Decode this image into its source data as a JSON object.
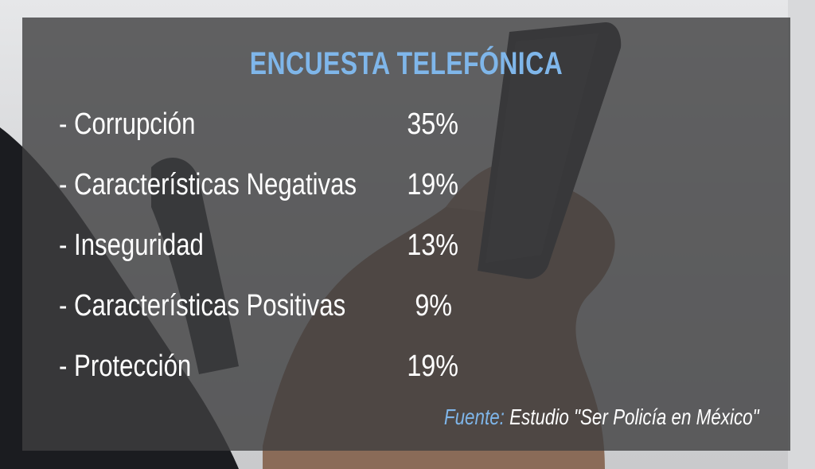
{
  "title": "ENCUESTA TELEFÓNICA",
  "items": [
    {
      "label": "- Corrupción",
      "value": "35%"
    },
    {
      "label": "- Características Negativas",
      "value": "19%"
    },
    {
      "label": "- Inseguridad",
      "value": "13%"
    },
    {
      "label": "- Características Positivas",
      "value": "9%"
    },
    {
      "label": "- Protección",
      "value": "19%"
    }
  ],
  "source": {
    "label": "Fuente:",
    "text": "Estudio \"Ser Policía en México\""
  },
  "colors": {
    "accent": "#7fb6ea",
    "text": "#ffffff",
    "panel": "#3e3e40"
  }
}
